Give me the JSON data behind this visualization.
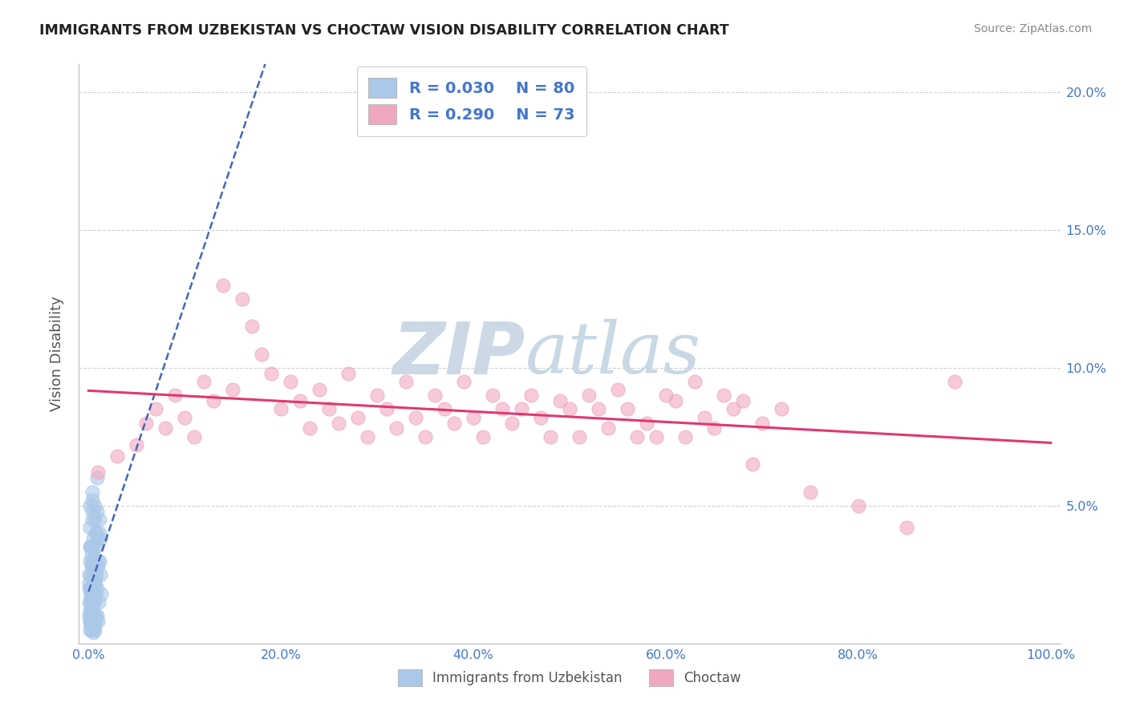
{
  "title": "IMMIGRANTS FROM UZBEKISTAN VS CHOCTAW VISION DISABILITY CORRELATION CHART",
  "source": "Source: ZipAtlas.com",
  "ylabel": "Vision Disability",
  "R_uzbek": "0.030",
  "N_uzbek": "80",
  "R_choctaw": "0.290",
  "N_choctaw": "73",
  "uzbek_fill": "#aac8e8",
  "choctaw_fill": "#f0a8be",
  "uzbek_line": "#4466bb",
  "choctaw_line": "#e03870",
  "watermark_color": "#d0dfe8",
  "title_color": "#222222",
  "source_color": "#888888",
  "tick_color": "#4477cc",
  "ylabel_color": "#555555",
  "grid_color": "#cccccc",
  "bg_color": "#ffffff",
  "legend_labels": [
    "Immigrants from Uzbekistan",
    "Choctaw"
  ],
  "xlim": [
    0,
    100
  ],
  "ylim": [
    0,
    21
  ],
  "xtick_vals": [
    0,
    20,
    40,
    60,
    80,
    100
  ],
  "xtick_labels": [
    "0.0%",
    "20.0%",
    "40.0%",
    "60.0%",
    "80.0%",
    "100.0%"
  ],
  "ytick_vals": [
    0,
    5,
    10,
    15,
    20
  ],
  "ytick_labels_left": [
    "",
    "",
    "",
    "",
    ""
  ],
  "ytick_labels_right": [
    "",
    "5.0%",
    "10.0%",
    "15.0%",
    "20.0%"
  ],
  "uzbek_x": [
    0.05,
    0.08,
    0.1,
    0.12,
    0.15,
    0.18,
    0.2,
    0.22,
    0.25,
    0.28,
    0.3,
    0.35,
    0.38,
    0.4,
    0.42,
    0.45,
    0.5,
    0.55,
    0.6,
    0.65,
    0.7,
    0.75,
    0.8,
    0.85,
    0.9,
    0.95,
    1.0,
    1.1,
    1.2,
    1.3,
    0.08,
    0.1,
    0.12,
    0.15,
    0.18,
    0.2,
    0.22,
    0.25,
    0.28,
    0.3,
    0.35,
    0.38,
    0.4,
    0.42,
    0.45,
    0.5,
    0.55,
    0.6,
    0.65,
    0.7,
    0.75,
    0.8,
    0.85,
    0.9,
    0.95,
    1.0,
    1.05,
    1.1,
    1.15,
    1.2,
    0.06,
    0.09,
    0.12,
    0.15,
    0.18,
    0.21,
    0.24,
    0.27,
    0.3,
    0.33,
    0.36,
    0.4,
    0.44,
    0.48,
    0.52,
    0.56,
    0.6,
    0.65,
    0.7,
    0.75
  ],
  "uzbek_y": [
    1.5,
    2.0,
    0.8,
    1.2,
    0.5,
    1.8,
    2.5,
    1.0,
    0.7,
    1.5,
    0.5,
    0.8,
    1.2,
    3.0,
    2.8,
    1.0,
    0.4,
    0.6,
    2.2,
    0.5,
    1.8,
    3.5,
    4.0,
    2.0,
    1.0,
    0.8,
    3.0,
    4.5,
    2.5,
    1.8,
    2.2,
    3.0,
    4.2,
    5.0,
    3.5,
    2.0,
    1.2,
    1.8,
    0.9,
    3.2,
    4.5,
    5.5,
    4.8,
    5.2,
    3.8,
    2.8,
    2.0,
    1.5,
    5.0,
    4.0,
    3.5,
    2.5,
    4.8,
    6.0,
    3.8,
    2.8,
    1.5,
    3.0,
    4.0,
    3.8,
    2.5,
    1.0,
    3.5,
    0.8,
    2.0,
    1.5,
    1.2,
    0.9,
    2.8,
    3.5,
    1.8,
    1.2,
    0.6,
    1.5,
    2.5,
    3.0,
    4.5,
    2.2,
    1.0,
    0.8
  ],
  "choctaw_x": [
    1,
    3,
    5,
    6,
    7,
    8,
    9,
    10,
    11,
    12,
    13,
    14,
    15,
    16,
    17,
    18,
    19,
    20,
    21,
    22,
    23,
    24,
    25,
    26,
    27,
    28,
    29,
    30,
    31,
    32,
    33,
    34,
    35,
    36,
    37,
    38,
    39,
    40,
    41,
    42,
    43,
    44,
    45,
    46,
    47,
    48,
    49,
    50,
    51,
    52,
    53,
    54,
    55,
    56,
    57,
    58,
    59,
    60,
    61,
    62,
    63,
    64,
    65,
    66,
    67,
    68,
    69,
    70,
    72,
    75,
    80,
    85,
    90
  ],
  "choctaw_y": [
    6.2,
    6.8,
    7.2,
    8.0,
    8.5,
    7.8,
    9.0,
    8.2,
    7.5,
    9.5,
    8.8,
    13.0,
    9.2,
    12.5,
    11.5,
    10.5,
    9.8,
    8.5,
    9.5,
    8.8,
    7.8,
    9.2,
    8.5,
    8.0,
    9.8,
    8.2,
    7.5,
    9.0,
    8.5,
    7.8,
    9.5,
    8.2,
    7.5,
    9.0,
    8.5,
    8.0,
    9.5,
    8.2,
    7.5,
    9.0,
    8.5,
    8.0,
    8.5,
    9.0,
    8.2,
    7.5,
    8.8,
    8.5,
    7.5,
    9.0,
    8.5,
    7.8,
    9.2,
    8.5,
    7.5,
    8.0,
    7.5,
    9.0,
    8.8,
    7.5,
    9.5,
    8.2,
    7.8,
    9.0,
    8.5,
    8.8,
    6.5,
    8.0,
    8.5,
    5.5,
    5.0,
    4.2,
    9.5
  ]
}
